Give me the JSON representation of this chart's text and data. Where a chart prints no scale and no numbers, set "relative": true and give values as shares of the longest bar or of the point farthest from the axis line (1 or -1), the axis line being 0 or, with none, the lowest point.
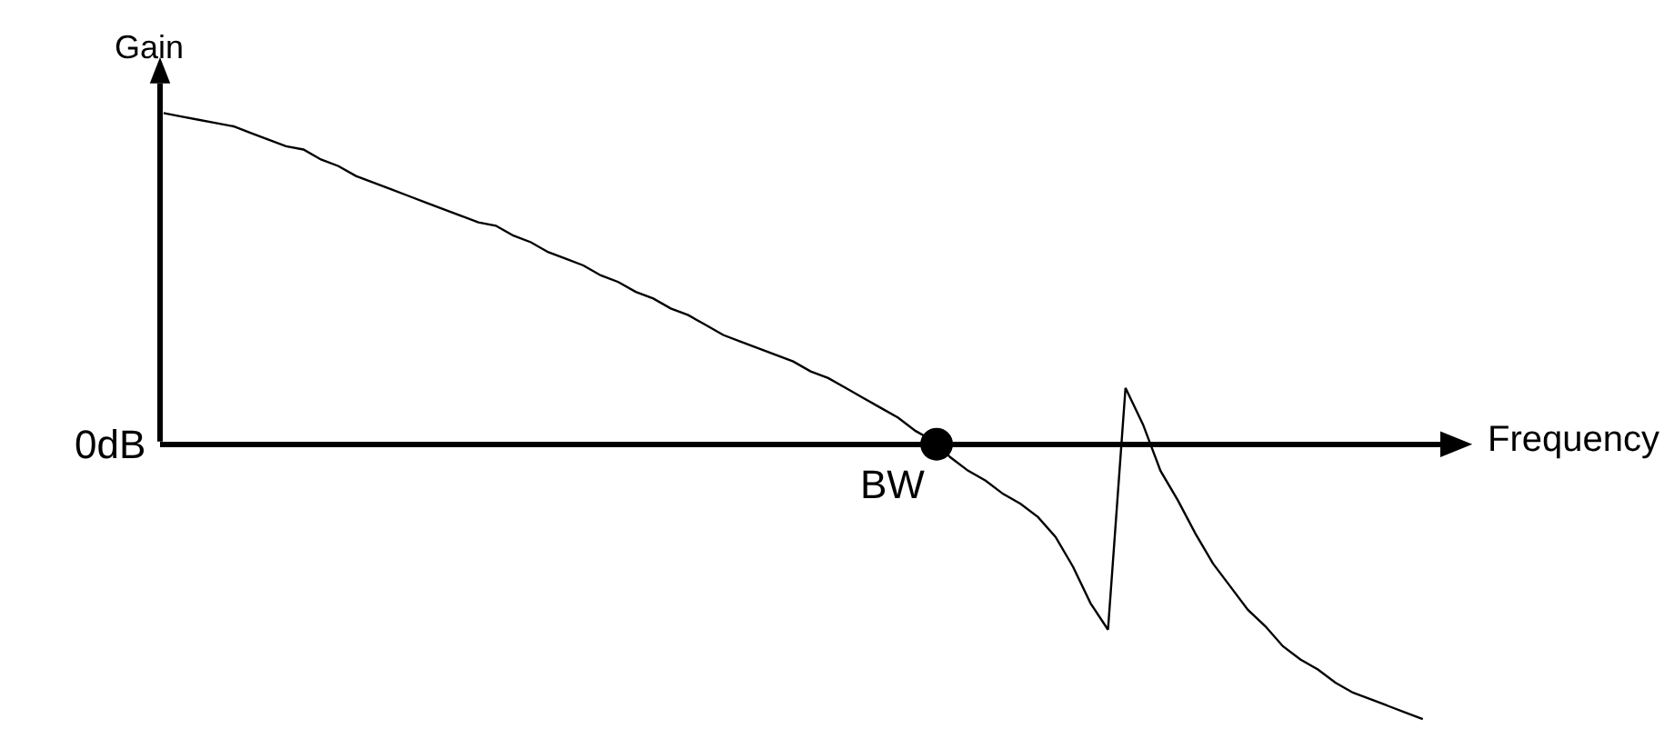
{
  "chart_data": {
    "type": "line",
    "ylabel": "Gain",
    "xlabel": "Frequency",
    "relative": true,
    "categories": [
      null,
      null,
      null,
      null,
      null,
      null,
      null,
      null,
      null,
      null,
      null,
      null,
      null,
      null,
      null,
      null,
      null,
      null,
      null,
      null,
      null,
      null,
      null,
      null,
      null,
      null,
      null,
      null,
      null,
      null,
      null,
      null,
      null,
      null,
      null,
      null,
      null,
      null,
      null,
      null,
      null,
      null,
      null,
      null,
      null,
      null,
      null,
      null,
      null,
      null,
      null,
      null,
      null,
      null,
      null,
      null,
      null,
      null,
      null,
      null,
      null,
      null,
      null,
      null,
      null,
      null,
      null,
      null,
      null,
      null,
      null,
      null,
      null
    ],
    "series": [
      {
        "color": "#000000",
        "values": [
          1.0,
          0.99,
          0.98,
          0.97,
          0.96,
          0.94,
          0.92,
          0.9,
          0.89,
          0.86,
          0.84,
          0.81,
          0.79,
          0.77,
          0.75,
          0.73,
          0.71,
          0.69,
          0.67,
          0.66,
          0.63,
          0.61,
          0.58,
          0.56,
          0.54,
          0.51,
          0.49,
          0.46,
          0.44,
          0.41,
          0.39,
          0.36,
          0.33,
          0.31,
          0.29,
          0.27,
          0.25,
          0.22,
          0.2,
          0.17,
          0.14,
          0.11,
          0.08,
          0.04,
          0.01,
          -0.04,
          -0.08,
          -0.11,
          -0.15,
          -0.18,
          -0.22,
          -0.28,
          -0.37,
          -0.48,
          -0.56,
          0.17,
          0.06,
          -0.08,
          -0.17,
          -0.27,
          -0.36,
          -0.43,
          -0.5,
          -0.55,
          -0.61,
          -0.65,
          -0.68,
          -0.72,
          -0.75,
          -0.77,
          -0.79,
          -0.81,
          -0.83
        ]
      }
    ],
    "annotations": [
      "0dB",
      "BW"
    ]
  }
}
